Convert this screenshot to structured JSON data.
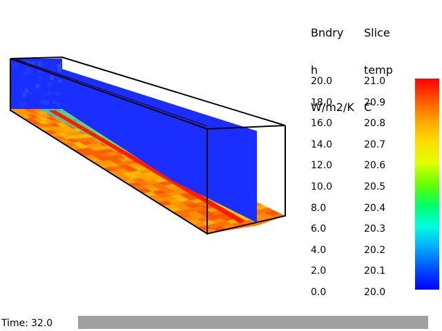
{
  "legend": {
    "boundary": {
      "title_lines": [
        "Bndry",
        "h",
        "W/m2/K"
      ],
      "ticks": [
        "20.0",
        "18.0",
        "16.0",
        "14.0",
        "12.0",
        "10.0",
        "8.0",
        "6.0",
        "4.0",
        "2.0",
        "0.0"
      ]
    },
    "slice": {
      "title_lines": [
        "Slice",
        "temp",
        "C"
      ],
      "ticks": [
        "21.0",
        "20.9",
        "20.8",
        "20.7",
        "20.6",
        "20.5",
        "20.4",
        "20.3",
        "20.2",
        "20.1",
        "20.0"
      ]
    },
    "colorbar": {
      "stops": [
        "#ff0000",
        "#ff5500",
        "#ffa500",
        "#ffdd00",
        "#e0ff00",
        "#66ff00",
        "#00ff66",
        "#00ffe0",
        "#00aaff",
        "#0050ff",
        "#0000ff"
      ]
    }
  },
  "time": {
    "label": "Time:",
    "value": "32.0",
    "progress_color": "#a0a0a0"
  },
  "scene": {
    "slice_color": "#1a2fff",
    "box_stroke": "#000000",
    "floor_colors": [
      "#ff3300",
      "#ff6600",
      "#ff9900",
      "#ffbb00",
      "#ffdd00"
    ]
  }
}
